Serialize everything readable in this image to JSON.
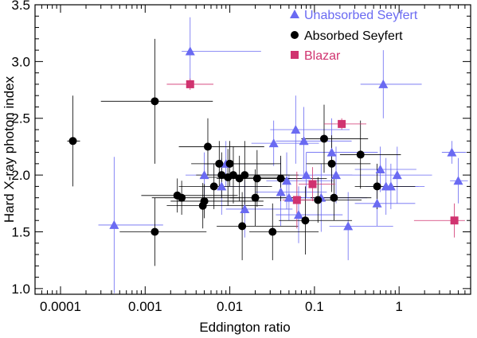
{
  "chart_data": {
    "type": "scatter",
    "xlabel": "Eddington ratio",
    "ylabel": "Hard X-ray photon index",
    "xscale": "log",
    "xlim": [
      5e-05,
      7
    ],
    "ylim": [
      0.95,
      3.5
    ],
    "x_ticks": [
      {
        "value": 0.0001,
        "label": "0.0001"
      },
      {
        "value": 0.001,
        "label": "0.001"
      },
      {
        "value": 0.01,
        "label": "0.01"
      },
      {
        "value": 0.1,
        "label": "0.1"
      },
      {
        "value": 1,
        "label": "1"
      }
    ],
    "y_ticks": [
      {
        "value": 1.0,
        "label": "1.0"
      },
      {
        "value": 1.5,
        "label": "1.5"
      },
      {
        "value": 2.0,
        "label": "2.0"
      },
      {
        "value": 2.5,
        "label": "2.5"
      },
      {
        "value": 3.0,
        "label": "3.0"
      },
      {
        "value": 3.5,
        "label": "3.5"
      }
    ],
    "legend_position": "top-right",
    "series": [
      {
        "name": "Unabsorbed Seyfert",
        "marker": "triangle",
        "color": "#6a6af2",
        "points": [
          {
            "x": 0.00043,
            "y": 1.56,
            "xerr": [
              0.00015,
              0.0012
            ],
            "yerr": [
              0.6,
              0.6
            ]
          },
          {
            "x": 0.0034,
            "y": 3.09,
            "xerr": [
              0.0007,
              0.02
            ],
            "yerr": [
              0.3,
              0.3
            ]
          },
          {
            "x": 0.005,
            "y": 2.0,
            "xerr": [
              0.002,
              0.015
            ],
            "yerr": [
              0.2,
              0.2
            ]
          },
          {
            "x": 0.008,
            "y": 1.9,
            "xerr": [
              0.003,
              0.02
            ],
            "yerr": [
              0.25,
              0.25
            ]
          },
          {
            "x": 0.009,
            "y": 2.1,
            "xerr": [
              0.004,
              0.025
            ],
            "yerr": [
              0.2,
              0.2
            ]
          },
          {
            "x": 0.015,
            "y": 1.7,
            "xerr": [
              0.006,
              0.04
            ],
            "yerr": [
              0.25,
              0.25
            ]
          },
          {
            "x": 0.033,
            "y": 2.28,
            "xerr": [
              0.015,
              0.08
            ],
            "yerr": [
              0.2,
              0.2
            ]
          },
          {
            "x": 0.04,
            "y": 1.85,
            "xerr": [
              0.02,
              0.1
            ],
            "yerr": [
              0.3,
              0.3
            ]
          },
          {
            "x": 0.047,
            "y": 1.95,
            "xerr": [
              0.02,
              0.12
            ],
            "yerr": [
              0.25,
              0.25
            ]
          },
          {
            "x": 0.05,
            "y": 1.8,
            "xerr": [
              0.02,
              0.1
            ],
            "yerr": [
              0.2,
              0.2
            ]
          },
          {
            "x": 0.06,
            "y": 2.4,
            "xerr": [
              0.03,
              0.2
            ],
            "yerr": [
              0.3,
              0.3
            ]
          },
          {
            "x": 0.065,
            "y": 1.65,
            "xerr": [
              0.03,
              0.15
            ],
            "yerr": [
              0.25,
              0.25
            ]
          },
          {
            "x": 0.075,
            "y": 2.3,
            "xerr": [
              0.04,
              0.2
            ],
            "yerr": [
              0.3,
              0.3
            ]
          },
          {
            "x": 0.08,
            "y": 2.0,
            "xerr": [
              0.04,
              0.2
            ],
            "yerr": [
              0.2,
              0.2
            ]
          },
          {
            "x": 0.12,
            "y": 1.8,
            "xerr": [
              0.05,
              0.3
            ],
            "yerr": [
              0.3,
              0.3
            ]
          },
          {
            "x": 0.16,
            "y": 2.2,
            "xerr": [
              0.08,
              0.4
            ],
            "yerr": [
              0.3,
              0.3
            ]
          },
          {
            "x": 0.18,
            "y": 2.0,
            "xerr": [
              0.08,
              0.4
            ],
            "yerr": [
              0.25,
              0.25
            ]
          },
          {
            "x": 0.25,
            "y": 1.55,
            "xerr": [
              0.1,
              0.6
            ],
            "yerr": [
              0.3,
              0.3
            ]
          },
          {
            "x": 0.65,
            "y": 2.8,
            "xerr": [
              0.3,
              1.2
            ],
            "yerr": [
              0.3,
              0.3
            ]
          },
          {
            "x": 0.6,
            "y": 2.05,
            "xerr": [
              0.3,
              1.0
            ],
            "yerr": [
              0.2,
              0.2
            ]
          },
          {
            "x": 0.7,
            "y": 1.9,
            "xerr": [
              0.3,
              1.0
            ],
            "yerr": [
              0.25,
              0.25
            ]
          },
          {
            "x": 0.55,
            "y": 1.75,
            "xerr": [
              0.25,
              1.0
            ],
            "yerr": [
              0.2,
              0.2
            ]
          },
          {
            "x": 0.8,
            "y": 1.9,
            "xerr": [
              0.3,
              1.2
            ],
            "yerr": [
              0.2,
              0.2
            ]
          },
          {
            "x": 0.95,
            "y": 2.0,
            "xerr": [
              0.4,
              1.5
            ],
            "yerr": [
              0.25,
              0.25
            ]
          },
          {
            "x": 4.2,
            "y": 2.2,
            "xerr": [
              1.0,
              2.0
            ],
            "yerr": [
              0.1,
              0.1
            ]
          },
          {
            "x": 5.0,
            "y": 1.95,
            "xerr": [
              1.0,
              1.5
            ],
            "yerr": [
              0.2,
              0.2
            ]
          }
        ]
      },
      {
        "name": "Absorbed Seyfert",
        "marker": "circle",
        "color": "#000000",
        "points": [
          {
            "x": 0.00014,
            "y": 2.3,
            "xerr": [
              2e-05,
              3e-05
            ],
            "yerr": [
              0.4,
              0.4
            ]
          },
          {
            "x": 0.0013,
            "y": 2.65,
            "xerr": [
              0.001,
              0.005
            ],
            "yerr": [
              0.55,
              0.55
            ]
          },
          {
            "x": 0.0013,
            "y": 1.5,
            "xerr": [
              0.0008,
              0.004
            ],
            "yerr": [
              0.3,
              0.3
            ]
          },
          {
            "x": 0.0024,
            "y": 1.82,
            "xerr": [
              0.0015,
              0.01
            ],
            "yerr": [
              0.15,
              0.15
            ]
          },
          {
            "x": 0.0027,
            "y": 1.8,
            "xerr": [
              0.0015,
              0.01
            ],
            "yerr": [
              0.15,
              0.15
            ]
          },
          {
            "x": 0.0048,
            "y": 1.73,
            "xerr": [
              0.003,
              0.02
            ],
            "yerr": [
              0.2,
              0.2
            ]
          },
          {
            "x": 0.005,
            "y": 1.77,
            "xerr": [
              0.003,
              0.02
            ],
            "yerr": [
              0.15,
              0.15
            ]
          },
          {
            "x": 0.0055,
            "y": 2.25,
            "xerr": [
              0.003,
              0.02
            ],
            "yerr": [
              0.25,
              0.25
            ]
          },
          {
            "x": 0.0065,
            "y": 1.9,
            "xerr": [
              0.004,
              0.025
            ],
            "yerr": [
              0.2,
              0.2
            ]
          },
          {
            "x": 0.0075,
            "y": 2.1,
            "xerr": [
              0.004,
              0.025
            ],
            "yerr": [
              0.2,
              0.2
            ]
          },
          {
            "x": 0.008,
            "y": 2.0,
            "xerr": [
              0.004,
              0.03
            ],
            "yerr": [
              0.2,
              0.2
            ]
          },
          {
            "x": 0.0095,
            "y": 1.98,
            "xerr": [
              0.005,
              0.03
            ],
            "yerr": [
              0.25,
              0.25
            ]
          },
          {
            "x": 0.01,
            "y": 2.1,
            "xerr": [
              0.005,
              0.03
            ],
            "yerr": [
              0.2,
              0.2
            ]
          },
          {
            "x": 0.011,
            "y": 2.0,
            "xerr": [
              0.006,
              0.04
            ],
            "yerr": [
              0.25,
              0.25
            ]
          },
          {
            "x": 0.013,
            "y": 1.97,
            "xerr": [
              0.006,
              0.04
            ],
            "yerr": [
              0.2,
              0.2
            ]
          },
          {
            "x": 0.015,
            "y": 2.0,
            "xerr": [
              0.007,
              0.05
            ],
            "yerr": [
              0.3,
              0.3
            ]
          },
          {
            "x": 0.014,
            "y": 1.55,
            "xerr": [
              0.007,
              0.05
            ],
            "yerr": [
              0.3,
              0.3
            ]
          },
          {
            "x": 0.02,
            "y": 1.8,
            "xerr": [
              0.01,
              0.05
            ],
            "yerr": [
              0.25,
              0.25
            ]
          },
          {
            "x": 0.021,
            "y": 1.97,
            "xerr": [
              0.01,
              0.06
            ],
            "yerr": [
              0.25,
              0.25
            ]
          },
          {
            "x": 0.032,
            "y": 1.5,
            "xerr": [
              0.015,
              0.08
            ],
            "yerr": [
              0.25,
              0.25
            ]
          },
          {
            "x": 0.04,
            "y": 1.97,
            "xerr": [
              0.02,
              0.1
            ],
            "yerr": [
              0.2,
              0.2
            ]
          },
          {
            "x": 0.078,
            "y": 1.6,
            "xerr": [
              0.04,
              0.2
            ],
            "yerr": [
              0.3,
              0.3
            ]
          },
          {
            "x": 0.11,
            "y": 1.78,
            "xerr": [
              0.05,
              0.25
            ],
            "yerr": [
              0.2,
              0.2
            ]
          },
          {
            "x": 0.13,
            "y": 2.32,
            "xerr": [
              0.06,
              0.3
            ],
            "yerr": [
              0.3,
              0.3
            ]
          },
          {
            "x": 0.16,
            "y": 2.1,
            "xerr": [
              0.08,
              0.3
            ],
            "yerr": [
              0.25,
              0.25
            ]
          },
          {
            "x": 0.17,
            "y": 1.8,
            "xerr": [
              0.08,
              0.3
            ],
            "yerr": [
              0.2,
              0.2
            ]
          },
          {
            "x": 0.35,
            "y": 2.18,
            "xerr": [
              0.15,
              0.7
            ],
            "yerr": [
              0.3,
              0.3
            ]
          },
          {
            "x": 0.55,
            "y": 1.9,
            "xerr": [
              0.25,
              1.0
            ],
            "yerr": [
              0.2,
              0.2
            ]
          }
        ]
      },
      {
        "name": "Blazar",
        "marker": "square",
        "color": "#d0336f",
        "points": [
          {
            "x": 0.0034,
            "y": 2.8,
            "xerr": [
              0.0016,
              0.003
            ],
            "yerr": [
              0.05,
              0.05
            ]
          },
          {
            "x": 0.062,
            "y": 1.78,
            "xerr": [
              0.02,
              0.05
            ],
            "yerr": [
              0.25,
              0.25
            ]
          },
          {
            "x": 0.095,
            "y": 1.92,
            "xerr": [
              0.03,
              0.08
            ],
            "yerr": [
              0.15,
              0.15
            ]
          },
          {
            "x": 0.21,
            "y": 2.45,
            "xerr": [
              0.08,
              0.2
            ],
            "yerr": [
              0.05,
              0.05
            ]
          },
          {
            "x": 4.5,
            "y": 1.6,
            "xerr": [
              3.0,
              1.5
            ],
            "yerr": [
              0.15,
              0.15
            ]
          }
        ]
      }
    ]
  }
}
